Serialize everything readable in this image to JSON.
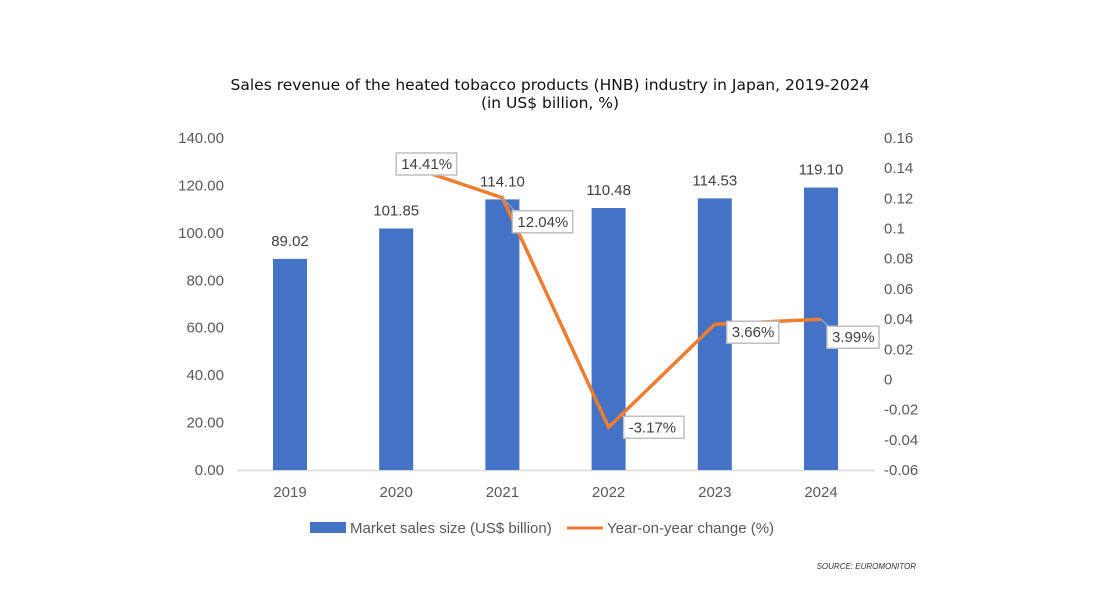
{
  "chart_data": {
    "type": "bar",
    "title": "Sales revenue of the heated tobacco products (HNB) industry in Japan, 2019-2024",
    "subtitle": "(in US$ billion, %)",
    "categories": [
      "2019",
      "2020",
      "2021",
      "2022",
      "2023",
      "2024"
    ],
    "series": [
      {
        "name": "Market sales size (US$ billion)",
        "type": "bar",
        "axis": "left",
        "color": "#4472C4",
        "values": [
          89.02,
          101.85,
          114.1,
          110.48,
          114.53,
          119.1
        ],
        "labels": [
          "89.02",
          "101.85",
          "114.10",
          "110.48",
          "114.53",
          "119.10"
        ]
      },
      {
        "name": "Year-on-year change (%)",
        "type": "line",
        "axis": "right",
        "color": "#ED7D31",
        "values": [
          null,
          0.1441,
          0.1204,
          -0.0317,
          0.0366,
          0.0399
        ],
        "labels": [
          null,
          "14.41%",
          "12.04%",
          "-3.17%",
          "3.66%",
          "3.99%"
        ]
      }
    ],
    "left_axis": {
      "ylim": [
        0,
        140
      ],
      "ticks": [
        "0.00",
        "20.00",
        "40.00",
        "60.00",
        "80.00",
        "100.00",
        "120.00",
        "140.00"
      ]
    },
    "right_axis": {
      "ylim": [
        -0.06,
        0.16
      ],
      "ticks": [
        "-0.06",
        "-0.04",
        "-0.02",
        "0",
        "0.02",
        "0.04",
        "0.06",
        "0.08",
        "0.1",
        "0.12",
        "0.14",
        "0.16"
      ]
    },
    "xlabel": "",
    "ylabel": "",
    "grid": false,
    "legend_position": "bottom",
    "source": "SOURCE: EUROMONITOR"
  }
}
